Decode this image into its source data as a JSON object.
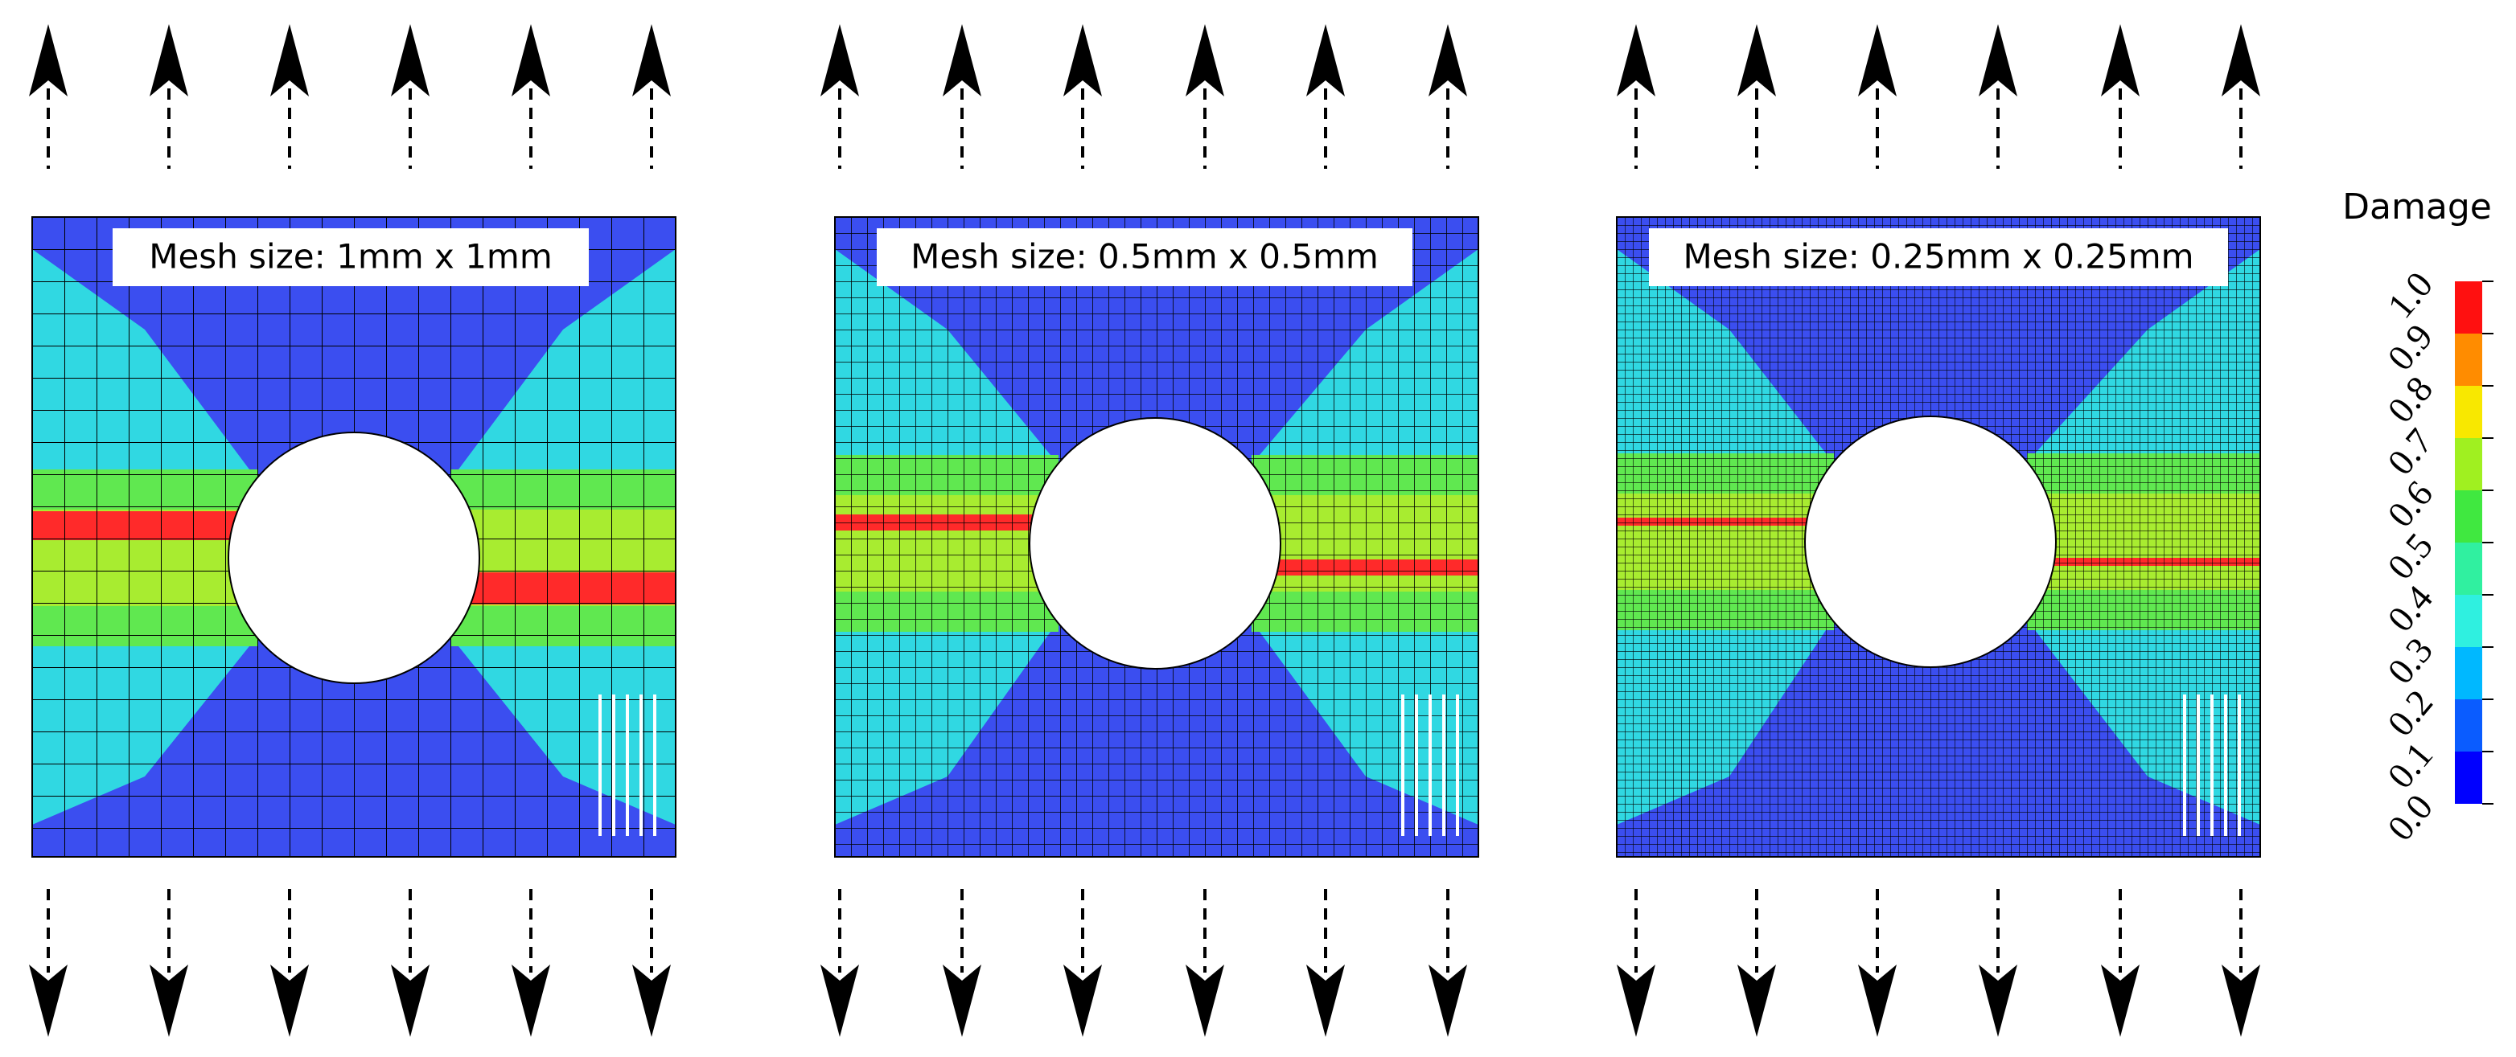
{
  "panels": [
    {
      "label": "Mesh size: 1mm x 1mm"
    },
    {
      "label": "Mesh size: 0.5mm x 0.5mm"
    },
    {
      "label": "Mesh size: 0.25mm x 0.25mm"
    }
  ],
  "legend": {
    "title": "Damage",
    "ticks": [
      "0.0",
      "0.1",
      "0.2",
      "0.3",
      "0.4",
      "0.5",
      "0.6",
      "0.7",
      "0.8",
      "0.9",
      "1.0"
    ],
    "colors": [
      "#0000ff",
      "#0a5cff",
      "#00b8ff",
      "#2ff0e0",
      "#30f0a0",
      "#40e840",
      "#a0f020",
      "#f8e800",
      "#ff8c00",
      "#ff1010"
    ]
  }
}
